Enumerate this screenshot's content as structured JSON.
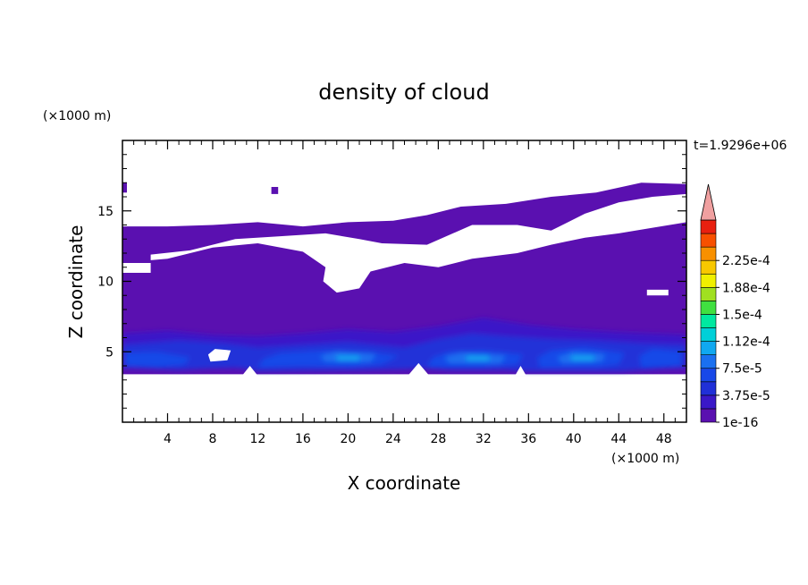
{
  "chart_data": {
    "type": "heatmap",
    "title": "density of cloud",
    "xlabel": "X coordinate",
    "ylabel": "Z coordinate",
    "x_unit": "(×1000 m)",
    "y_unit": "(×1000 m)",
    "time_label": "t=1.9296e+06",
    "xlim": [
      0,
      50
    ],
    "ylim": [
      0,
      20
    ],
    "x_ticks": [
      "4",
      "8",
      "12",
      "16",
      "20",
      "24",
      "28",
      "32",
      "36",
      "40",
      "44",
      "48"
    ],
    "y_ticks": [
      "5",
      "10",
      "15"
    ],
    "colorbar": {
      "labels": [
        "1e-16",
        "3.75e-5",
        "7.5e-5",
        "1.12e-4",
        "1.5e-4",
        "1.88e-4",
        "2.25e-4"
      ],
      "colors": [
        "#5a10b0",
        "#3a18c8",
        "#2030d8",
        "#1848e8",
        "#1a70f0",
        "#10a8f0",
        "#00d0d8",
        "#00e8a0",
        "#40e040",
        "#a0e020",
        "#f0f000",
        "#f8c800",
        "#f89000",
        "#f85000",
        "#e82010",
        "#f0a0a0"
      ],
      "extend_max": true
    },
    "background_color": "#5a10b0"
  }
}
